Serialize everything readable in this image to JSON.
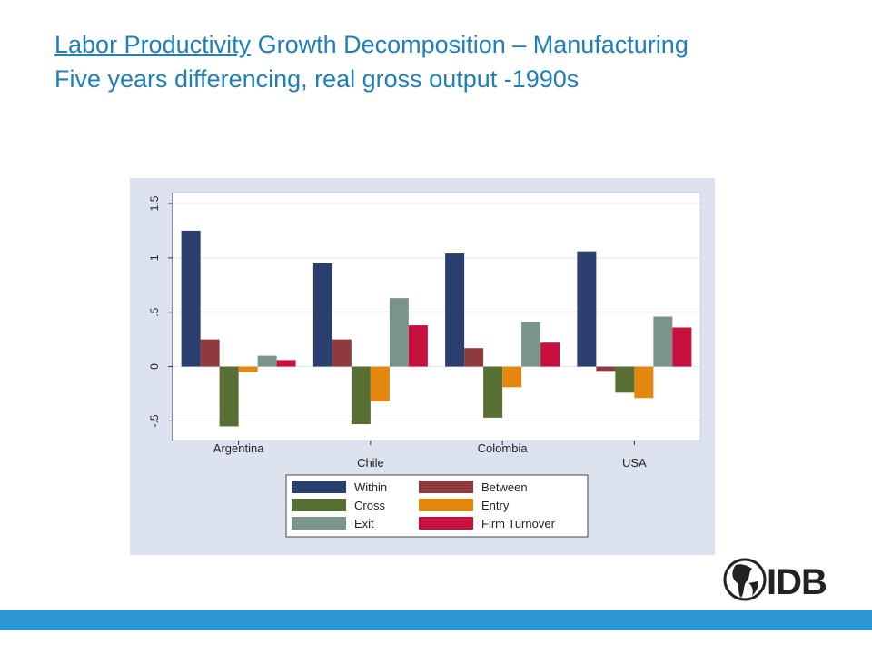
{
  "slide": {
    "title_link": "Labor Productivity",
    "title_rest": " Growth Decomposition – Manufacturing",
    "subtitle": "Five years differencing, real gross output -1990s",
    "logo_text": "IDB"
  },
  "colors": {
    "title": "#1f7fb8",
    "bottom_bar": "#2b96d1",
    "panel_bg": "#dde3ee"
  },
  "chart_data": {
    "type": "bar",
    "categories": [
      "Argentina",
      "Chile",
      "Colombia",
      "USA"
    ],
    "series": [
      {
        "name": "Within",
        "color": "#2a3f6e",
        "values": [
          1.25,
          0.95,
          1.04,
          1.06
        ]
      },
      {
        "name": "Between",
        "color": "#8e3a3f",
        "values": [
          0.25,
          0.25,
          0.17,
          -0.04
        ]
      },
      {
        "name": "Cross",
        "color": "#586f34",
        "values": [
          -0.55,
          -0.53,
          -0.47,
          -0.24
        ]
      },
      {
        "name": "Entry",
        "color": "#e3870e",
        "values": [
          -0.05,
          -0.32,
          -0.19,
          -0.29
        ]
      },
      {
        "name": "Exit",
        "color": "#7b9489",
        "values": [
          0.1,
          0.63,
          0.41,
          0.46
        ]
      },
      {
        "name": "Firm Turnover",
        "color": "#c8103e",
        "values": [
          0.06,
          0.38,
          0.22,
          0.36
        ]
      }
    ],
    "yticks": [
      "-.5",
      "0",
      ".5",
      "1",
      "1.5"
    ],
    "ytick_values": [
      -0.5,
      0,
      0.5,
      1,
      1.5
    ],
    "ylim": [
      -0.68,
      1.6
    ],
    "grid": true,
    "legend_position": "bottom"
  }
}
